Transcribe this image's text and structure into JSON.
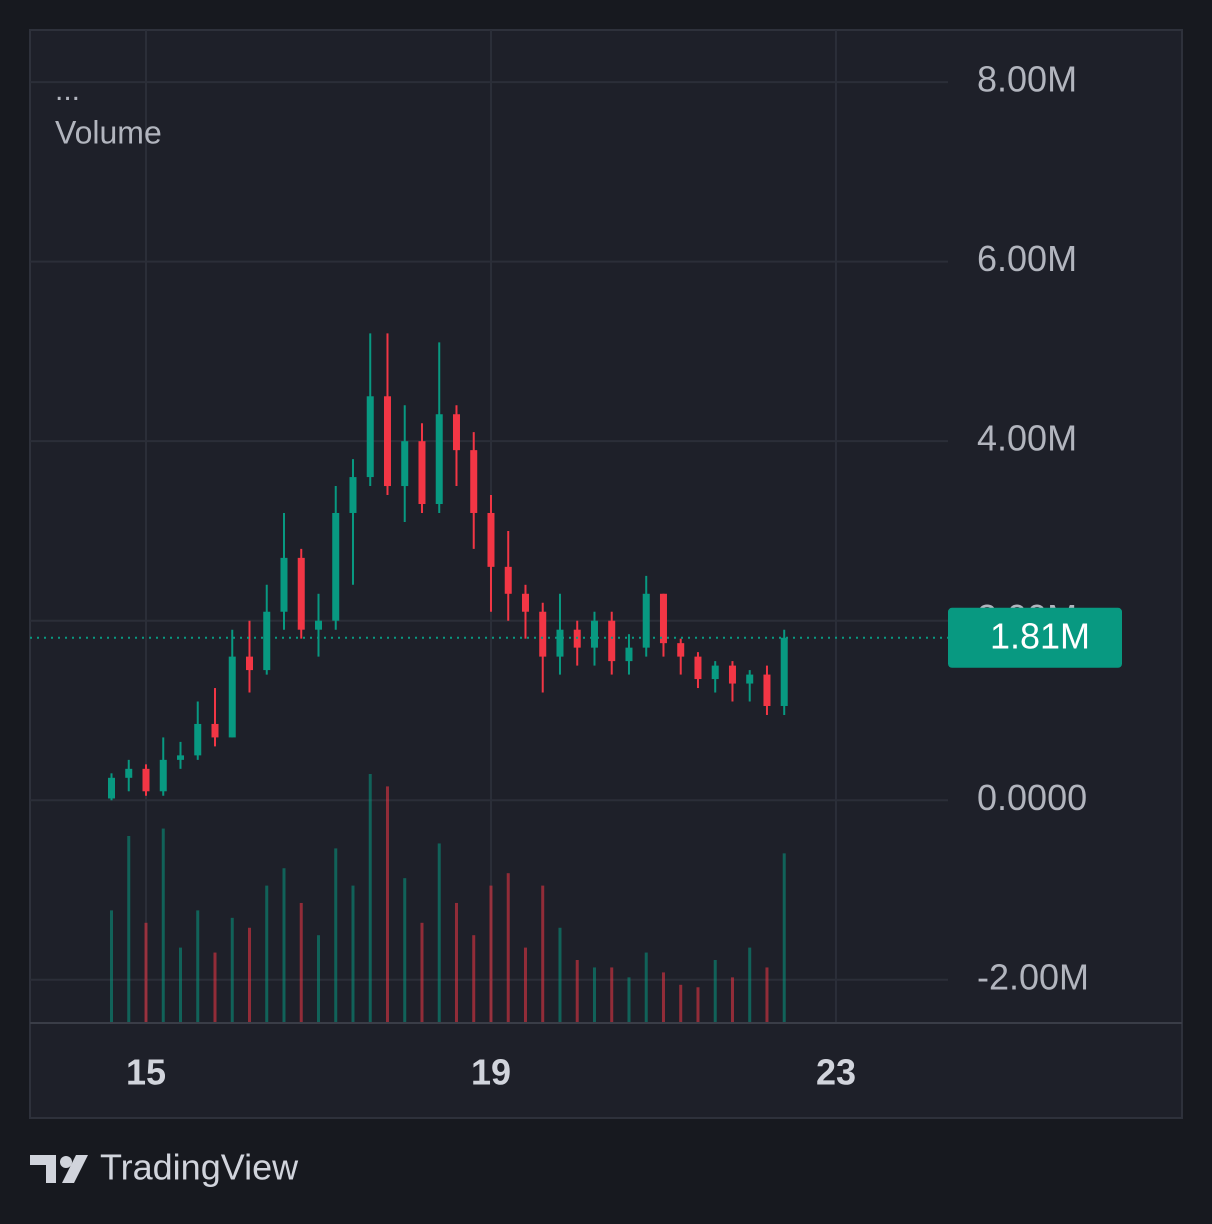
{
  "chart_data": {
    "type": "candlestick",
    "legend_menu": "...",
    "legend": "Volume",
    "brand": "TradingView",
    "up_color": "#089981",
    "down_color": "#f23645",
    "grid": true,
    "xlim": [
      13.655,
      24.299
    ],
    "xticks": [
      15,
      19,
      23
    ],
    "ylim": [
      -2470000,
      8580000
    ],
    "yticks": [
      {
        "value": -2000000,
        "label": "-2.00M"
      },
      {
        "value": 0,
        "label": "0.0000"
      },
      {
        "value": 2000000,
        "label": "2.00M"
      },
      {
        "value": 4000000,
        "label": "4.00M"
      },
      {
        "value": 6000000,
        "label": "6.00M"
      },
      {
        "value": 8000000,
        "label": "8.00M"
      }
    ],
    "y2lim": [
      0,
      400000
    ],
    "price_label": {
      "value": 1810000,
      "label": "1.81M"
    },
    "x": [
      14.6,
      14.8,
      15.0,
      15.2,
      15.4,
      15.6,
      15.8,
      16.0,
      16.2,
      16.4,
      16.6,
      16.8,
      17.0,
      17.2,
      17.4,
      17.6,
      17.8,
      18.0,
      18.2,
      18.4,
      18.6,
      18.8,
      19.0,
      19.2,
      19.4,
      19.6,
      19.8,
      20.0,
      20.2,
      20.4,
      20.6,
      20.8,
      21.0,
      21.2,
      21.4,
      21.6,
      21.8,
      22.0,
      22.2,
      22.4
    ],
    "open": [
      20000,
      250000,
      350000,
      100000,
      450000,
      500000,
      850000,
      700000,
      1600000,
      1450000,
      2100000,
      2700000,
      1900000,
      2000000,
      3200000,
      3600000,
      4500000,
      3500000,
      4000000,
      3300000,
      4300000,
      3900000,
      3200000,
      2600000,
      2300000,
      2100000,
      1600000,
      1900000,
      1700000,
      2000000,
      1550000,
      1700000,
      2300000,
      1750000,
      1600000,
      1350000,
      1500000,
      1300000,
      1400000,
      1050000
    ],
    "high": [
      300000,
      450000,
      400000,
      700000,
      650000,
      1100000,
      1250000,
      1900000,
      2000000,
      2400000,
      3200000,
      2800000,
      2300000,
      3500000,
      3800000,
      5200000,
      5200000,
      4400000,
      4200000,
      5100000,
      4400000,
      4100000,
      3400000,
      3000000,
      2400000,
      2200000,
      2300000,
      2000000,
      2100000,
      2100000,
      1850000,
      2500000,
      2300000,
      1800000,
      1650000,
      1550000,
      1550000,
      1450000,
      1500000,
      1900000
    ],
    "low": [
      0,
      100000,
      50000,
      50000,
      350000,
      450000,
      600000,
      700000,
      1200000,
      1400000,
      1900000,
      1800000,
      1600000,
      1900000,
      2400000,
      3500000,
      3400000,
      3100000,
      3200000,
      3200000,
      3500000,
      2800000,
      2100000,
      2000000,
      1800000,
      1200000,
      1400000,
      1500000,
      1500000,
      1400000,
      1400000,
      1600000,
      1600000,
      1400000,
      1250000,
      1200000,
      1100000,
      1100000,
      950000,
      950000
    ],
    "close": [
      250000,
      350000,
      100000,
      450000,
      500000,
      850000,
      700000,
      1600000,
      1450000,
      2100000,
      2700000,
      1900000,
      2000000,
      3200000,
      3600000,
      4500000,
      3500000,
      4000000,
      3300000,
      4300000,
      3900000,
      3200000,
      2600000,
      2300000,
      2100000,
      1600000,
      1900000,
      1700000,
      2000000,
      1550000,
      1700000,
      2300000,
      1750000,
      1600000,
      1350000,
      1500000,
      1300000,
      1400000,
      1050000,
      1810000
    ],
    "volume": [
      45000,
      75000,
      40000,
      78000,
      30000,
      45000,
      28000,
      42000,
      38000,
      55000,
      62000,
      48000,
      35000,
      70000,
      55000,
      100000,
      95000,
      58000,
      40000,
      72000,
      48000,
      35000,
      55000,
      60000,
      30000,
      55000,
      38000,
      25000,
      22000,
      22000,
      18000,
      28000,
      20000,
      15000,
      14000,
      25000,
      18000,
      30000,
      22000,
      68000
    ]
  }
}
